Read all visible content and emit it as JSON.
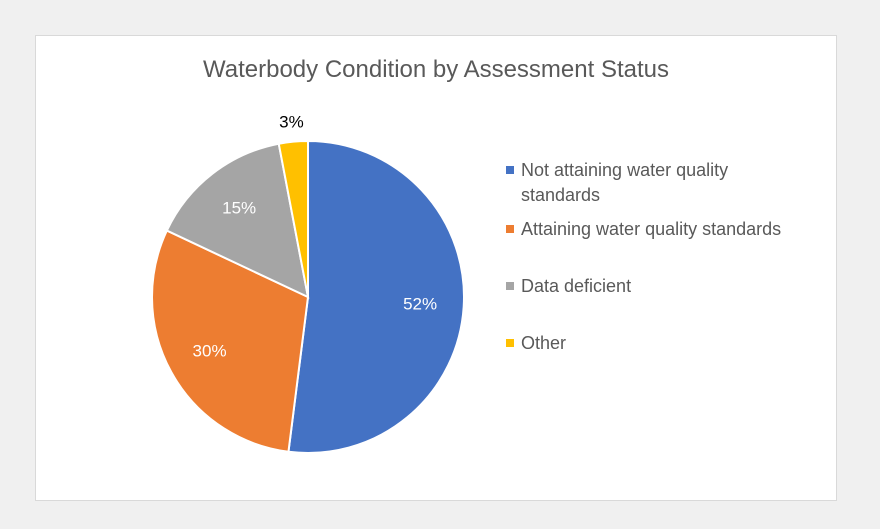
{
  "chart_data": {
    "type": "pie",
    "title": "Waterbody Condition by Assessment Status",
    "slices": [
      {
        "label": "Not attaining water quality standards",
        "value": 52,
        "value_label": "52%",
        "color": "#4472c4",
        "label_color": "#ffffff"
      },
      {
        "label": "Attaining water quality standards",
        "value": 30,
        "value_label": "30%",
        "color": "#ed7d31",
        "label_color": "#ffffff"
      },
      {
        "label": "Data deficient",
        "value": 15,
        "value_label": "15%",
        "color": "#a5a5a5",
        "label_color": "#ffffff"
      },
      {
        "label": "Other",
        "value": 3,
        "value_label": "3%",
        "color": "#ffc000",
        "label_color": "#000000"
      }
    ],
    "legend_position": "right",
    "start_angle": "12 o'clock",
    "direction": "clockwise"
  }
}
